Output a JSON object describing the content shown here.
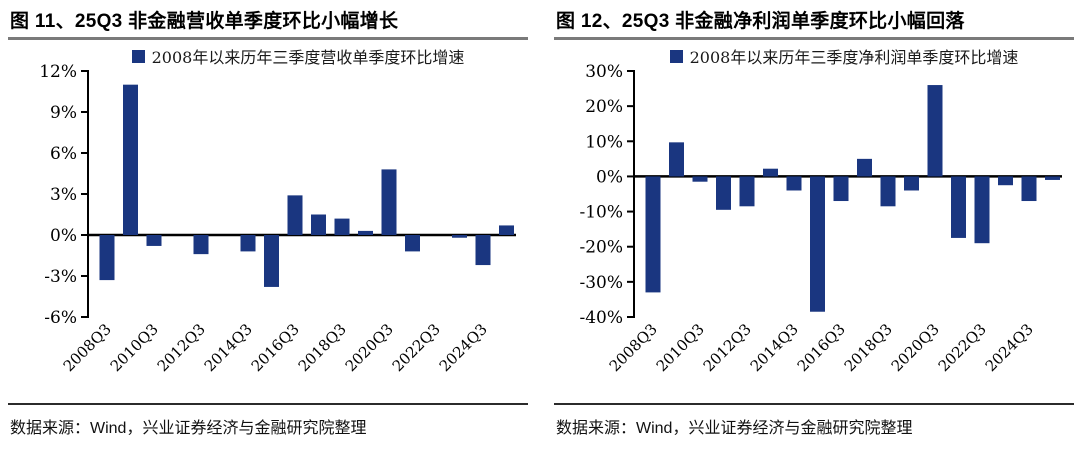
{
  "figures": [
    {
      "title": "图 11、25Q3 非金融营收单季度环比小幅增长",
      "source": "数据来源：Wind，兴业证券经济与金融研究院整理",
      "chart_data": {
        "type": "bar",
        "title": "",
        "legend": "2008年以来历年三季度营收单季度环比增速",
        "legend_position": "top",
        "categories": [
          "2008Q3",
          "2009Q3",
          "2010Q3",
          "2011Q3",
          "2012Q3",
          "2013Q3",
          "2014Q3",
          "2015Q3",
          "2016Q3",
          "2017Q3",
          "2018Q3",
          "2019Q3",
          "2020Q3",
          "2021Q3",
          "2022Q3",
          "2023Q3",
          "2024Q3",
          "2025Q3"
        ],
        "values": [
          -3.3,
          11.0,
          -0.8,
          0.0,
          -1.4,
          0.0,
          -1.2,
          -3.8,
          2.9,
          1.5,
          1.2,
          0.3,
          4.8,
          -1.2,
          0.0,
          -0.2,
          -2.2,
          0.7
        ],
        "x_tick_labels": [
          "2008Q3",
          "2010Q3",
          "2012Q3",
          "2014Q3",
          "2016Q3",
          "2018Q3",
          "2020Q3",
          "2022Q3",
          "2024Q3"
        ],
        "y_ticks": [
          12,
          9,
          6,
          3,
          0,
          -3,
          -6
        ],
        "y_tick_suffix": "%",
        "ylim": [
          -6,
          12
        ],
        "grid": false,
        "bar_color": "#1A3680",
        "axis_color": "#000000"
      }
    },
    {
      "title": "图 12、25Q3 非金融净利润单季度环比小幅回落",
      "source": "数据来源：Wind，兴业证券经济与金融研究院整理",
      "chart_data": {
        "type": "bar",
        "title": "",
        "legend": "2008年以来历年三季度净利润单季度环比增速",
        "legend_position": "top",
        "categories": [
          "2008Q3",
          "2009Q3",
          "2010Q3",
          "2011Q3",
          "2012Q3",
          "2013Q3",
          "2014Q3",
          "2015Q3",
          "2016Q3",
          "2017Q3",
          "2018Q3",
          "2019Q3",
          "2020Q3",
          "2021Q3",
          "2022Q3",
          "2023Q3",
          "2024Q3",
          "2025Q3"
        ],
        "values": [
          -33.0,
          9.7,
          -1.5,
          -9.5,
          -8.5,
          2.2,
          -4.0,
          -38.5,
          -7.0,
          5.0,
          -8.5,
          -4.0,
          26.0,
          -17.5,
          -19.0,
          -2.5,
          -7.0,
          -1.0
        ],
        "x_tick_labels": [
          "2008Q3",
          "2010Q3",
          "2012Q3",
          "2014Q3",
          "2016Q3",
          "2018Q3",
          "2020Q3",
          "2022Q3",
          "2024Q3"
        ],
        "y_ticks": [
          30,
          20,
          10,
          0,
          -10,
          -20,
          -30,
          -40
        ],
        "y_tick_suffix": "%",
        "ylim": [
          -40,
          30
        ],
        "grid": false,
        "bar_color": "#1A3680",
        "axis_color": "#000000"
      }
    }
  ]
}
